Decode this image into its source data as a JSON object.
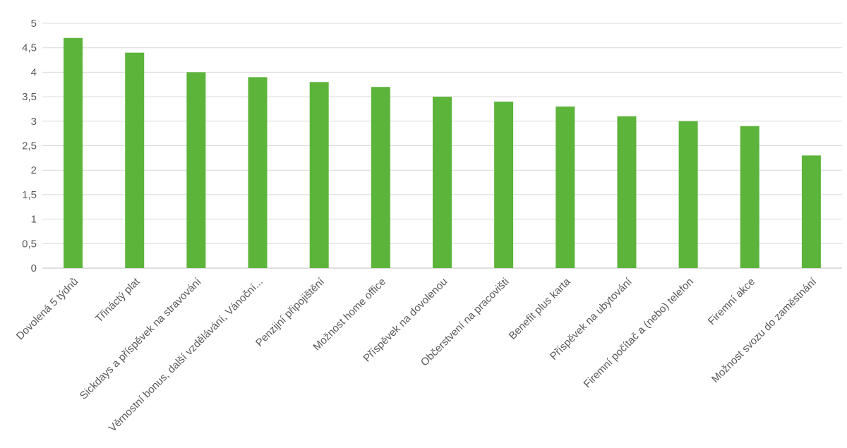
{
  "chart_data": {
    "type": "bar",
    "title": "",
    "xlabel": "",
    "ylabel": "",
    "ylim": [
      0,
      5
    ],
    "yticks": [
      0,
      0.5,
      1,
      1.5,
      2,
      2.5,
      3,
      3.5,
      4,
      4.5,
      5
    ],
    "ytick_labels": [
      "0",
      "0,5",
      "1",
      "1,5",
      "2",
      "2,5",
      "3",
      "3,5",
      "4",
      "4,5",
      "5"
    ],
    "grid": true,
    "legend": "none",
    "bar_color": "#5cb43a",
    "categories": [
      "Dovolená 5 týdnů",
      "Třináctý plat",
      "Sickdays a příspěvek na stravování",
      "Věrnostní bonus, další vzdělávání, Vánoční...",
      "Penzijní připojištění",
      "Možnost home office",
      "Příspěvek na dovolenou",
      "Občerstvení na pracovišti",
      "Benefit plus karta",
      "Příspěvek na ubytování",
      "Firemní počítač a (nebo) telefon",
      "Firemní akce",
      "Možnost svozu do zaměstnání"
    ],
    "values": [
      4.7,
      4.4,
      4.0,
      3.9,
      3.8,
      3.7,
      3.5,
      3.4,
      3.3,
      3.1,
      3.0,
      2.9,
      2.3
    ]
  }
}
